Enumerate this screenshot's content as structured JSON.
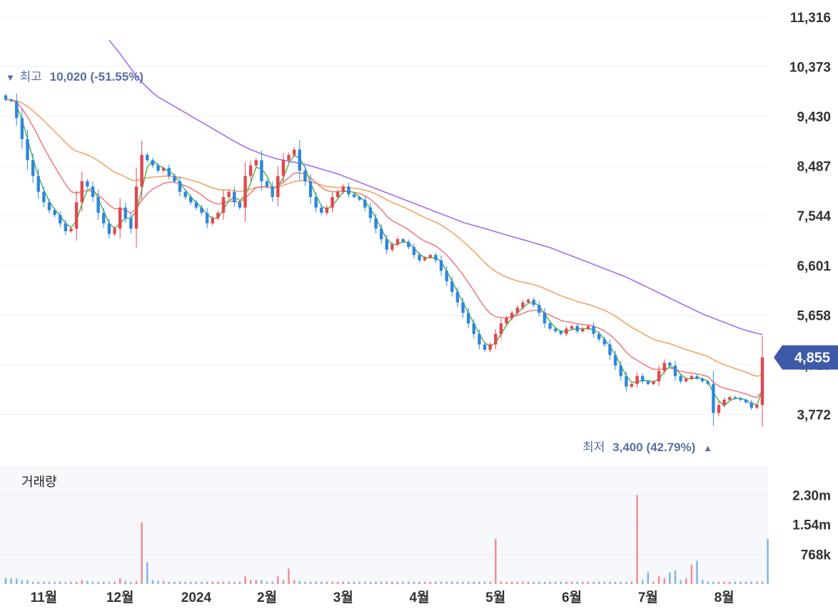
{
  "chart_data": {
    "type": "candlestick",
    "price_axis": {
      "ticks": [
        "11,316",
        "10,373",
        "9,430",
        "8,487",
        "7,544",
        "6,601",
        "5,658",
        "4,715",
        "3,772"
      ],
      "range": [
        3200,
        11316
      ]
    },
    "current_price": {
      "label": "4,855",
      "value": 4855,
      "color": "#3d5aa8"
    },
    "high_annotation": {
      "marker": "▼",
      "label": "최고",
      "value": "10,020 (-51.55%)",
      "price": 10020
    },
    "low_annotation": {
      "marker": "▲",
      "label": "최저",
      "value": "3,400 (42.79%)",
      "price": 3400
    },
    "volume_panel": {
      "title": "거래량",
      "ticks": [
        "2.30m",
        "1.54m",
        "768k"
      ],
      "range": [
        0,
        3070000
      ]
    },
    "x_axis": {
      "labels": [
        "11월",
        "12월",
        "2024",
        "2월",
        "3월",
        "4월",
        "5월",
        "6월",
        "7월",
        "8월"
      ]
    },
    "colors": {
      "up": "#e0484e",
      "down": "#2e86de",
      "ma5": "#5cb85c",
      "ma20": "#ef7f7f",
      "ma60": "#f4a55f",
      "ma120": "#a66cf2"
    },
    "series": [
      {
        "name": "close",
        "values": [
          9750,
          9720,
          9400,
          9000,
          8600,
          8300,
          8000,
          7800,
          7650,
          7560,
          7400,
          7250,
          7300,
          7800,
          8200,
          8100,
          7900,
          7600,
          7400,
          7200,
          7300,
          7700,
          7500,
          7300,
          8100,
          8700,
          8600,
          8500,
          8400,
          8450,
          8300,
          8200,
          8000,
          7900,
          7800,
          7700,
          7600,
          7400,
          7500,
          7600,
          7900,
          8000,
          7800,
          7700,
          8300,
          8500,
          8600,
          8200,
          8100,
          7900,
          8300,
          8600,
          8700,
          8800,
          8400,
          8200,
          7900,
          7700,
          7600,
          7700,
          7900,
          8000,
          8100,
          7950,
          7900,
          7850,
          7700,
          7500,
          7300,
          7100,
          6900,
          7000,
          7100,
          7050,
          6950,
          6800,
          6700,
          6750,
          6800,
          6700,
          6500,
          6300,
          6100,
          5900,
          5700,
          5500,
          5300,
          5100,
          5000,
          5100,
          5300,
          5500,
          5600,
          5700,
          5800,
          5900,
          5950,
          5850,
          5700,
          5500,
          5400,
          5350,
          5300,
          5400,
          5450,
          5350,
          5400,
          5450,
          5300,
          5200,
          5100,
          4900,
          4700,
          4500,
          4300,
          4350,
          4500,
          4400,
          4350,
          4400,
          4600,
          4750,
          4700,
          4500,
          4400,
          4450,
          4500,
          4450,
          4400,
          4350,
          3800,
          3950,
          4050,
          4100,
          4080,
          4050,
          4000,
          3900,
          3950,
          4855
        ]
      },
      {
        "name": "volume",
        "values": [
          160000,
          150000,
          140000,
          100000,
          100000,
          60000,
          60000,
          60000,
          60000,
          50000,
          60000,
          50000,
          60000,
          60000,
          100000,
          80000,
          60000,
          60000,
          60000,
          60000,
          60000,
          150000,
          80000,
          60000,
          80000,
          1600000,
          560000,
          100000,
          80000,
          80000,
          60000,
          60000,
          60000,
          60000,
          60000,
          60000,
          60000,
          60000,
          60000,
          60000,
          60000,
          60000,
          60000,
          60000,
          200000,
          100000,
          100000,
          100000,
          60000,
          60000,
          200000,
          100000,
          400000,
          100000,
          80000,
          60000,
          60000,
          60000,
          60000,
          60000,
          60000,
          60000,
          60000,
          60000,
          60000,
          60000,
          60000,
          60000,
          60000,
          60000,
          60000,
          60000,
          60000,
          60000,
          60000,
          60000,
          60000,
          60000,
          60000,
          60000,
          60000,
          60000,
          60000,
          60000,
          60000,
          60000,
          60000,
          60000,
          60000,
          60000,
          1170000,
          60000,
          60000,
          60000,
          60000,
          60000,
          60000,
          60000,
          60000,
          60000,
          60000,
          60000,
          60000,
          60000,
          60000,
          60000,
          60000,
          60000,
          60000,
          60000,
          60000,
          60000,
          60000,
          60000,
          60000,
          60000,
          2300000,
          100000,
          300000,
          60000,
          200000,
          150000,
          300000,
          350000,
          100000,
          150000,
          500000,
          600000,
          100000,
          60000,
          60000,
          60000,
          60000,
          60000,
          60000,
          60000,
          60000,
          60000,
          60000,
          60000,
          1170000
        ]
      },
      {
        "name": "ma120",
        "values": [
          null,
          null,
          null,
          null,
          null,
          null,
          null,
          null,
          null,
          null,
          null,
          null,
          null,
          null,
          null,
          null,
          null,
          null,
          null,
          10880,
          10750,
          10620,
          10480,
          10340,
          10200,
          10080,
          9980,
          9880,
          9800,
          9740,
          9680,
          9620,
          9560,
          9500,
          9440,
          9380,
          9320,
          9260,
          9200,
          9140,
          9080,
          9020,
          8960,
          8900,
          8850,
          8800,
          8760,
          8720,
          8680,
          8650,
          8620,
          8600,
          8580,
          8560,
          8540,
          8520,
          8490,
          8460,
          8430,
          8400,
          8370,
          8340,
          8300,
          8260,
          8220,
          8180,
          8140,
          8100,
          8060,
          8020,
          7980,
          7940,
          7900,
          7860,
          7820,
          7780,
          7740,
          7700,
          7660,
          7620,
          7580,
          7540,
          7500,
          7460,
          7420,
          7390,
          7360,
          7330,
          7300,
          7270,
          7240,
          7210,
          7180,
          7150,
          7120,
          7090,
          7060,
          7030,
          7000,
          6970,
          6940,
          6900,
          6860,
          6820,
          6780,
          6740,
          6700,
          6660,
          6620,
          6580,
          6540,
          6500,
          6460,
          6420,
          6380,
          6330,
          6280,
          6230,
          6180,
          6130,
          6080,
          6030,
          5980,
          5930,
          5880,
          5830,
          5780,
          5730,
          5680,
          5640,
          5600,
          5560,
          5520,
          5480,
          5440,
          5400,
          5370,
          5340,
          5310,
          5290
        ]
      }
    ]
  }
}
